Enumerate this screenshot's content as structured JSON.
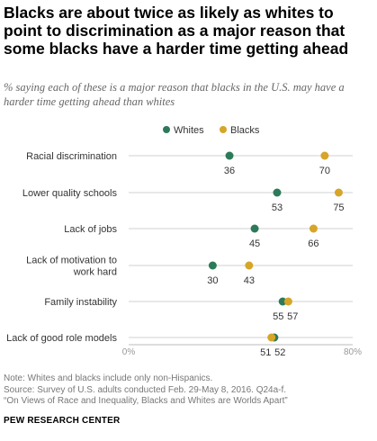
{
  "title": "Blacks are about twice as likely as whites to point to discrimination as a major reason that some blacks have a harder time getting ahead",
  "subtitle": "% saying each of these is a major reason that blacks in the U.S. may have a harder time getting ahead than whites",
  "colors": {
    "whites": "#2d7a5a",
    "blacks": "#d6a529",
    "line": "#d2d2d2",
    "axis": "#bbbbbb"
  },
  "chart_data": {
    "type": "dot",
    "categories": [
      "Racial discrimination",
      "Lower quality schools",
      "Lack of jobs",
      "Lack of motivation to work hard",
      "Family instability",
      "Lack of good role models"
    ],
    "category_lines": [
      [
        "Racial discrimination"
      ],
      [
        "Lower quality schools"
      ],
      [
        "Lack of jobs"
      ],
      [
        "Lack of motivation to",
        "work hard"
      ],
      [
        "Family instability"
      ],
      [
        "Lack of good role models"
      ]
    ],
    "series": [
      {
        "name": "Whites",
        "values": [
          36,
          53,
          45,
          30,
          55,
          52
        ]
      },
      {
        "name": "Blacks",
        "values": [
          70,
          75,
          66,
          43,
          57,
          51
        ]
      }
    ],
    "xlim": [
      0,
      80
    ],
    "x_tick_labels": [
      "0%",
      "80%"
    ],
    "legend": "top-center"
  },
  "notes": [
    "Note: Whites and blacks include only non-Hispanics.",
    "Source: Survey of U.S. adults conducted Feb. 29-May 8, 2016. Q24a-f.",
    "“On Views of Race and Inequality, Blacks and Whites are Worlds Apart”"
  ],
  "brand": "PEW RESEARCH CENTER"
}
